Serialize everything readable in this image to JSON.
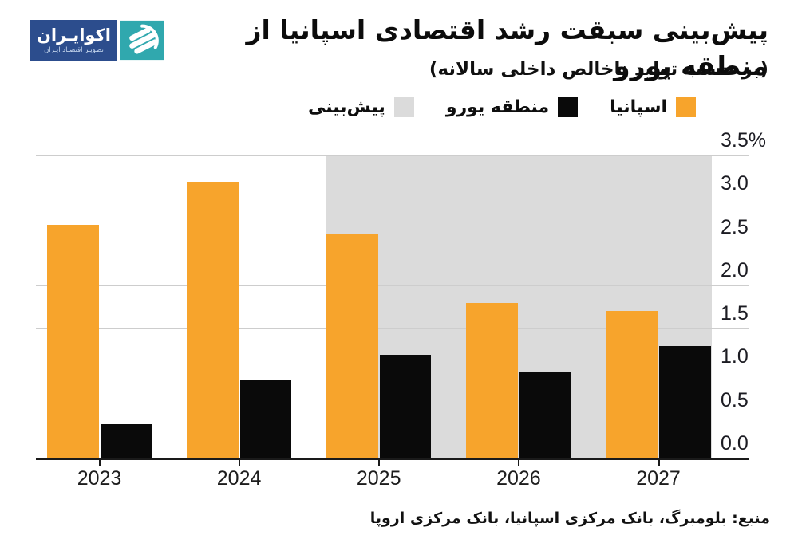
{
  "logo": {
    "brand": "اکوایـران",
    "tagline": "تصویـر اقتصـاد ایـران",
    "blue": "#2C4D8D",
    "teal": "#30A8AE"
  },
  "header": {
    "title": "پیش‌بینی سبقت رشد اقتصادی اسپانیا از منطقه یورو",
    "subtitle": "(بر حسب تولید ناخالص داخلی سالانه)"
  },
  "legend": [
    {
      "label": "اسپانیا",
      "color": "#F7A42C"
    },
    {
      "label": "منطقه یورو",
      "color": "#0A0A0A"
    },
    {
      "label": "پیش‌بینی",
      "color": "#DBDBDB"
    }
  ],
  "chart_data": {
    "type": "bar",
    "title": "پیش‌بینی سبقت رشد اقتصادی اسپانیا از منطقه یورو",
    "subtitle": "(بر حسب تولید ناخالص داخلی سالانه)",
    "categories": [
      "2023",
      "2024",
      "2025",
      "2026",
      "2027"
    ],
    "series": [
      {
        "name": "اسپانیا",
        "color": "#F7A42C",
        "values": [
          2.7,
          3.2,
          2.6,
          1.8,
          1.7
        ]
      },
      {
        "name": "منطقه یورو",
        "color": "#0A0A0A",
        "values": [
          0.4,
          0.9,
          1.2,
          1.0,
          1.3
        ]
      }
    ],
    "forecast_from_category": "2025",
    "forecast_region_color": "#DBDBDB",
    "y_ticks": [
      "3.5%",
      "3.0",
      "2.5",
      "2.0",
      "1.5",
      "1.0",
      "0.5",
      "0.0"
    ],
    "y_tick_values": [
      3.5,
      3.0,
      2.5,
      2.0,
      1.5,
      1.0,
      0.5,
      0.0
    ],
    "ylim": [
      0,
      3.5
    ],
    "xlabel": "",
    "ylabel": "",
    "grid": true,
    "legend_position": "top",
    "gridline_color": "#CDCDCD",
    "axis_color": "#1A1A1A"
  },
  "source": "منبع: بلومبرگ، بانک مرکزی اسپانیا، بانک مرکزی اروپا"
}
